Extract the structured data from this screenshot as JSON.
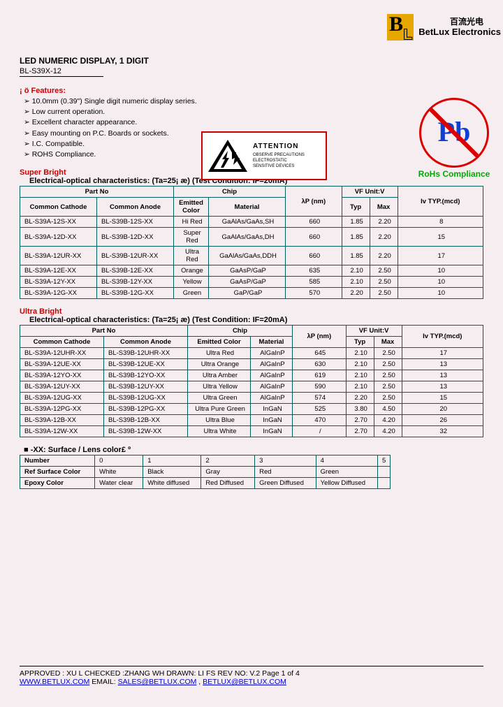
{
  "company": {
    "cn": "百流光电",
    "en_bold": "BetLux",
    "en_rest": " Electronics"
  },
  "title": "LED NUMERIC DISPLAY, 1 DIGIT",
  "product": "BL-S39X-12",
  "features_label": "¡ ö Features:",
  "features": [
    "10.0mm (0.39\") Single digit numeric display series.",
    "Low current operation.",
    "Excellent character appearance.",
    "Easy mounting on P.C. Boards or sockets.",
    "I.C. Compatible.",
    "ROHS Compliance."
  ],
  "esd": {
    "title": "ATTENTION",
    "line1": "OBSERVE PRECAUTIONS",
    "line2": "ELECTROSTATIC",
    "line3": "SENSITIVE DEVICES"
  },
  "pb": {
    "symbol": "Pb",
    "label": "RoHs Compliance"
  },
  "super": {
    "title": "Super Bright",
    "sub": "Electrical-optical characteristics: (Ta=25¡ æ) (Test Condition: IF=20mA)",
    "header": {
      "partno": "Part No",
      "cc": "Common Cathode",
      "ca": "Common Anode",
      "chip": "Chip",
      "ec": "Emitted Color",
      "mat": "Material",
      "lp": "λP (nm)",
      "vf": "VF Unit:V",
      "typ": "Typ",
      "max": "Max",
      "iv": "Iv TYP.(mcd)"
    },
    "rows": [
      {
        "cc": "BL-S39A-12S-XX",
        "ca": "BL-S39B-12S-XX",
        "ec": "Hi Red",
        "mat": "GaAlAs/GaAs,SH",
        "lp": "660",
        "typ": "1.85",
        "max": "2.20",
        "iv": "8"
      },
      {
        "cc": "BL-S39A-12D-XX",
        "ca": "BL-S39B-12D-XX",
        "ec": "Super Red",
        "mat": "GaAlAs/GaAs,DH",
        "lp": "660",
        "typ": "1.85",
        "max": "2.20",
        "iv": "15"
      },
      {
        "cc": "BL-S39A-12UR-XX",
        "ca": "BL-S39B-12UR-XX",
        "ec": "Ultra Red",
        "mat": "GaAlAs/GaAs,DDH",
        "lp": "660",
        "typ": "1.85",
        "max": "2.20",
        "iv": "17"
      },
      {
        "cc": "BL-S39A-12E-XX",
        "ca": "BL-S39B-12E-XX",
        "ec": "Orange",
        "mat": "GaAsP/GaP",
        "lp": "635",
        "typ": "2.10",
        "max": "2.50",
        "iv": "10"
      },
      {
        "cc": "BL-S39A-12Y-XX",
        "ca": "BL-S39B-12Y-XX",
        "ec": "Yellow",
        "mat": "GaAsP/GaP",
        "lp": "585",
        "typ": "2.10",
        "max": "2.50",
        "iv": "10"
      },
      {
        "cc": "BL-S39A-12G-XX",
        "ca": "BL-S39B-12G-XX",
        "ec": "Green",
        "mat": "GaP/GaP",
        "lp": "570",
        "typ": "2.20",
        "max": "2.50",
        "iv": "10"
      }
    ]
  },
  "ultra": {
    "title": "Ultra Bright",
    "sub": "Electrical-optical characteristics: (Ta=25¡ æ) (Test Condition: IF=20mA)",
    "header": {
      "partno": "Part No",
      "cc": "Common Cathode",
      "ca": "Common Anode",
      "chip": "Chip",
      "ec": "Emitted Color",
      "mat": "Material",
      "lp": "λP (nm)",
      "vf": "VF Unit:V",
      "typ": "Typ",
      "max": "Max",
      "iv": "Iv TYP.(mcd)"
    },
    "rows": [
      {
        "cc": "BL-S39A-12UHR-XX",
        "ca": "BL-S39B-12UHR-XX",
        "ec": "Ultra Red",
        "mat": "AlGaInP",
        "lp": "645",
        "typ": "2.10",
        "max": "2.50",
        "iv": "17"
      },
      {
        "cc": "BL-S39A-12UE-XX",
        "ca": "BL-S39B-12UE-XX",
        "ec": "Ultra Orange",
        "mat": "AlGaInP",
        "lp": "630",
        "typ": "2.10",
        "max": "2.50",
        "iv": "13"
      },
      {
        "cc": "BL-S39A-12YO-XX",
        "ca": "BL-S39B-12YO-XX",
        "ec": "Ultra Amber",
        "mat": "AlGaInP",
        "lp": "619",
        "typ": "2.10",
        "max": "2.50",
        "iv": "13"
      },
      {
        "cc": "BL-S39A-12UY-XX",
        "ca": "BL-S39B-12UY-XX",
        "ec": "Ultra Yellow",
        "mat": "AlGaInP",
        "lp": "590",
        "typ": "2.10",
        "max": "2.50",
        "iv": "13"
      },
      {
        "cc": "BL-S39A-12UG-XX",
        "ca": "BL-S39B-12UG-XX",
        "ec": "Ultra Green",
        "mat": "AlGaInP",
        "lp": "574",
        "typ": "2.20",
        "max": "2.50",
        "iv": "15"
      },
      {
        "cc": "BL-S39A-12PG-XX",
        "ca": "BL-S39B-12PG-XX",
        "ec": "Ultra Pure Green",
        "mat": "InGaN",
        "lp": "525",
        "typ": "3.80",
        "max": "4.50",
        "iv": "20"
      },
      {
        "cc": "BL-S39A-12B-XX",
        "ca": "BL-S39B-12B-XX",
        "ec": "Ultra Blue",
        "mat": "InGaN",
        "lp": "470",
        "typ": "2.70",
        "max": "4.20",
        "iv": "26"
      },
      {
        "cc": "BL-S39A-12W-XX",
        "ca": "BL-S39B-12W-XX",
        "ec": "Ultra White",
        "mat": "InGaN",
        "lp": "/",
        "typ": "2.70",
        "max": "4.20",
        "iv": "32"
      }
    ]
  },
  "surface_note": "■   -XX: Surface / Lens color£ º",
  "colors": {
    "headers": [
      "Number",
      "0",
      "1",
      "2",
      "3",
      "4",
      "5"
    ],
    "ref": [
      "Ref Surface Color",
      "White",
      "Black",
      "Gray",
      "Red",
      "Green",
      ""
    ],
    "epoxy": [
      "Epoxy Color",
      "Water clear",
      "White diffused",
      "Red Diffused",
      "Green Diffused",
      "Yellow Diffused",
      ""
    ]
  },
  "footer": {
    "approved": "APPROVED : XU L    CHECKED :ZHANG WH    DRAWN: LI FS       REV NO: V.2     Page 1 of 4",
    "url": "WWW.BETLUX.COM",
    "email_label": "    EMAIL: ",
    "email1": "SALES@BETLUX.COM",
    "sep": " , ",
    "email2": "BETLUX@BETLUX.COM"
  }
}
